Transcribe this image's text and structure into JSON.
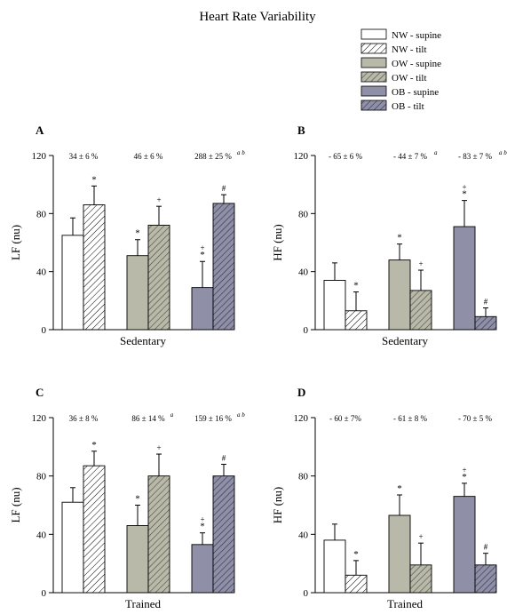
{
  "title": "Heart Rate Variability",
  "colors": {
    "nw_supine": "#ffffff",
    "ow_supine": "#b9b9a9",
    "ob_supine": "#8f8fa8",
    "nw_tilt_hatch": "#ffffff",
    "ow_tilt_hatch": "#9a9a88",
    "ob_tilt_hatch": "#6c6c88",
    "outline": "#000000"
  },
  "legend": [
    {
      "label": "NW - supine",
      "fill": "#ffffff",
      "hatch": false
    },
    {
      "label": "NW - tilt",
      "fill": "#ffffff",
      "hatch": true
    },
    {
      "label": "OW - supine",
      "fill": "#b9b9a9",
      "hatch": false
    },
    {
      "label": "OW - tilt",
      "fill": "#9a9a88",
      "hatch": true
    },
    {
      "label": "OB - supine",
      "fill": "#8f8fa8",
      "hatch": false
    },
    {
      "label": "OB - tilt",
      "fill": "#6c6c88",
      "hatch": true
    }
  ],
  "chart_data": [
    {
      "panel": "A",
      "type": "bar",
      "ylabel": "LF (nu)",
      "xlabel": "Sedentary",
      "ylim": [
        0,
        120
      ],
      "yticks": [
        0,
        40,
        80,
        120
      ],
      "groups": [
        {
          "name": "NW",
          "supine": 65,
          "supine_sd": 12,
          "tilt": 86,
          "tilt_sd": 13,
          "pct": "34 ± 6 %",
          "pct_sup": "",
          "marks": {
            "supine": "",
            "tilt": "*"
          }
        },
        {
          "name": "OW",
          "supine": 51,
          "supine_sd": 11,
          "tilt": 72,
          "tilt_sd": 13,
          "pct": "46 ± 6 %",
          "pct_sup": "",
          "marks": {
            "supine": "*",
            "tilt": "+"
          }
        },
        {
          "name": "OB",
          "supine": 29,
          "supine_sd": 18,
          "tilt": 87,
          "tilt_sd": 6,
          "pct": "288 ± 25 %",
          "pct_sup": "a b",
          "marks": {
            "supine": "+\n*",
            "tilt": "#"
          }
        }
      ]
    },
    {
      "panel": "B",
      "type": "bar",
      "ylabel": "HF (nu)",
      "xlabel": "Sedentary",
      "ylim": [
        0,
        120
      ],
      "yticks": [
        0,
        40,
        80,
        120
      ],
      "groups": [
        {
          "name": "NW",
          "supine": 34,
          "supine_sd": 12,
          "tilt": 13,
          "tilt_sd": 13,
          "pct": "- 65 ± 6 %",
          "pct_sup": "",
          "marks": {
            "supine": "",
            "tilt": "*"
          }
        },
        {
          "name": "OW",
          "supine": 48,
          "supine_sd": 11,
          "tilt": 27,
          "tilt_sd": 14,
          "pct": "- 44 ± 7 %",
          "pct_sup": "a",
          "marks": {
            "supine": "*",
            "tilt": "+"
          }
        },
        {
          "name": "OB",
          "supine": 71,
          "supine_sd": 18,
          "tilt": 9,
          "tilt_sd": 6,
          "pct": "- 83 ± 7 %",
          "pct_sup": "a b",
          "marks": {
            "supine": "+\n*",
            "tilt": "#"
          }
        }
      ]
    },
    {
      "panel": "C",
      "type": "bar",
      "ylabel": "LF (nu)",
      "xlabel": "Trained",
      "ylim": [
        0,
        120
      ],
      "yticks": [
        0,
        40,
        80,
        120
      ],
      "groups": [
        {
          "name": "NW",
          "supine": 62,
          "supine_sd": 10,
          "tilt": 87,
          "tilt_sd": 10,
          "pct": "36 ± 8 %",
          "pct_sup": "",
          "marks": {
            "supine": "",
            "tilt": "*"
          }
        },
        {
          "name": "OW",
          "supine": 46,
          "supine_sd": 14,
          "tilt": 80,
          "tilt_sd": 15,
          "pct": "86 ± 14 %",
          "pct_sup": "a",
          "marks": {
            "supine": "*",
            "tilt": "+"
          }
        },
        {
          "name": "OB",
          "supine": 33,
          "supine_sd": 8,
          "tilt": 80,
          "tilt_sd": 8,
          "pct": "159 ± 16 %",
          "pct_sup": "a b",
          "marks": {
            "supine": "+\n*",
            "tilt": "#"
          }
        }
      ]
    },
    {
      "panel": "D",
      "type": "bar",
      "ylabel": "HF (nu)",
      "xlabel": "Trained",
      "ylim": [
        0,
        120
      ],
      "yticks": [
        0,
        40,
        80,
        120
      ],
      "groups": [
        {
          "name": "NW",
          "supine": 36,
          "supine_sd": 11,
          "tilt": 12,
          "tilt_sd": 10,
          "pct": "- 60 ± 7%",
          "pct_sup": "",
          "marks": {
            "supine": "",
            "tilt": "*"
          }
        },
        {
          "name": "OW",
          "supine": 53,
          "supine_sd": 14,
          "tilt": 19,
          "tilt_sd": 15,
          "pct": "- 61 ± 8 %",
          "pct_sup": "",
          "marks": {
            "supine": "*",
            "tilt": "+"
          }
        },
        {
          "name": "OB",
          "supine": 66,
          "supine_sd": 9,
          "tilt": 19,
          "tilt_sd": 8,
          "pct": "- 70 ± 5 %",
          "pct_sup": "",
          "marks": {
            "supine": "+\n*",
            "tilt": "#"
          }
        }
      ]
    }
  ]
}
